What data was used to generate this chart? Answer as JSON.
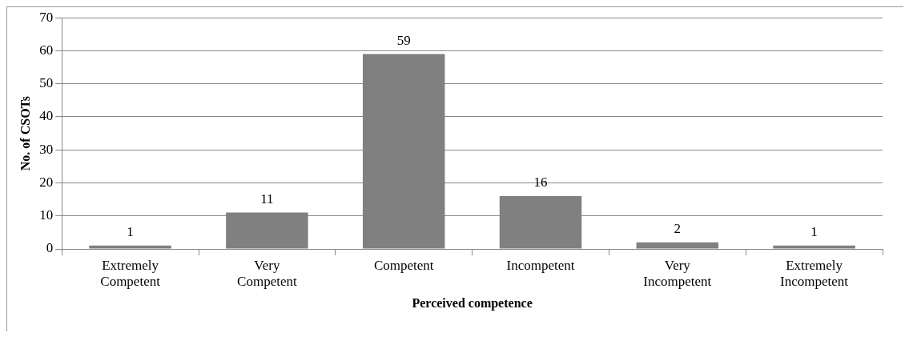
{
  "chart_data": {
    "type": "bar",
    "xlabel": "Perceived competence",
    "ylabel": "No. of CSOTs",
    "categories": [
      "Extremely Competent",
      "Very Competent",
      "Competent",
      "Incompetent",
      "Very Incompetent",
      "Extremely Incompetent"
    ],
    "values": [
      1,
      11,
      59,
      16,
      2,
      1
    ],
    "color": "#808080",
    "ylim": [
      0,
      70
    ],
    "yticks": [
      0,
      10,
      20,
      30,
      40,
      50,
      60,
      70
    ],
    "grid": "y",
    "data_labels": true
  }
}
